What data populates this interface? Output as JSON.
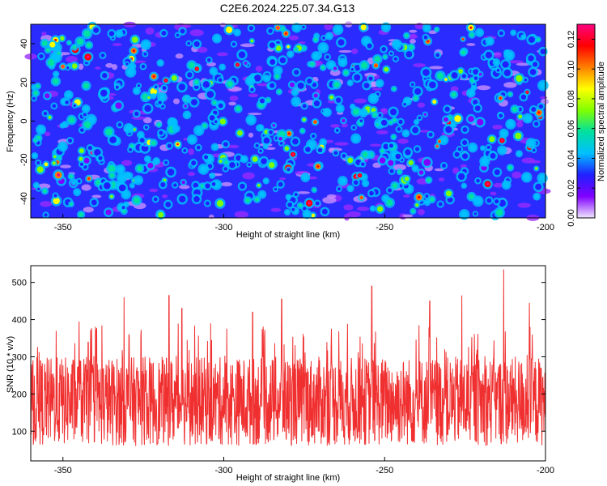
{
  "figure_title": "C2E6.2024.225.07.34.G13",
  "chart_data": [
    {
      "type": "heatmap",
      "title": "C2E6.2024.225.07.34.G13",
      "xlabel": "Height of straight line (km)",
      "ylabel": "Frequency (Hz)",
      "xlim": [
        -360,
        -200
      ],
      "ylim": [
        -50,
        50
      ],
      "x_ticks": [
        -350,
        -300,
        -250,
        -200
      ],
      "y_ticks": [
        -40,
        -20,
        0,
        20,
        40
      ],
      "colorbar": {
        "label": "Normalized spectral amplitude",
        "range": [
          0,
          0.13
        ],
        "ticks": [
          0.0,
          0.02,
          0.04,
          0.06,
          0.08,
          0.1,
          0.12
        ],
        "tick_labels": [
          "0.00",
          "0.02",
          "0.04",
          "0.06",
          "0.08",
          "0.10",
          "0.12"
        ],
        "colormap": [
          "#f0e6ff",
          "#8000ff",
          "#2020ff",
          "#00c0ff",
          "#00e0a0",
          "#80ff00",
          "#ffff00",
          "#ff8000",
          "#ff0000",
          "#ff0080"
        ]
      },
      "note_values": "Dense speckle field; values mostly 0.00-0.04 with scattered peaks up to ~0.12"
    },
    {
      "type": "line",
      "xlabel": "Height of straight line (km)",
      "ylabel": "SNR (10 * v/v)",
      "xlim": [
        -360,
        -200
      ],
      "ylim": [
        20,
        545
      ],
      "x_ticks": [
        -350,
        -300,
        -250,
        -200
      ],
      "y_ticks": [
        100,
        200,
        300,
        400,
        500
      ],
      "color": "#f03030",
      "series_summary": {
        "typical_range": [
          60,
          300
        ],
        "mean_level": 160,
        "peaks": [
          {
            "x": -345,
            "y": 395
          },
          {
            "x": -331,
            "y": 460
          },
          {
            "x": -317,
            "y": 465
          },
          {
            "x": -313,
            "y": 430
          },
          {
            "x": -291,
            "y": 420
          },
          {
            "x": -282,
            "y": 455
          },
          {
            "x": -254,
            "y": 490
          },
          {
            "x": -236,
            "y": 450
          },
          {
            "x": -226,
            "y": 465
          },
          {
            "x": -213,
            "y": 535
          },
          {
            "x": -205,
            "y": 445
          }
        ]
      }
    }
  ]
}
